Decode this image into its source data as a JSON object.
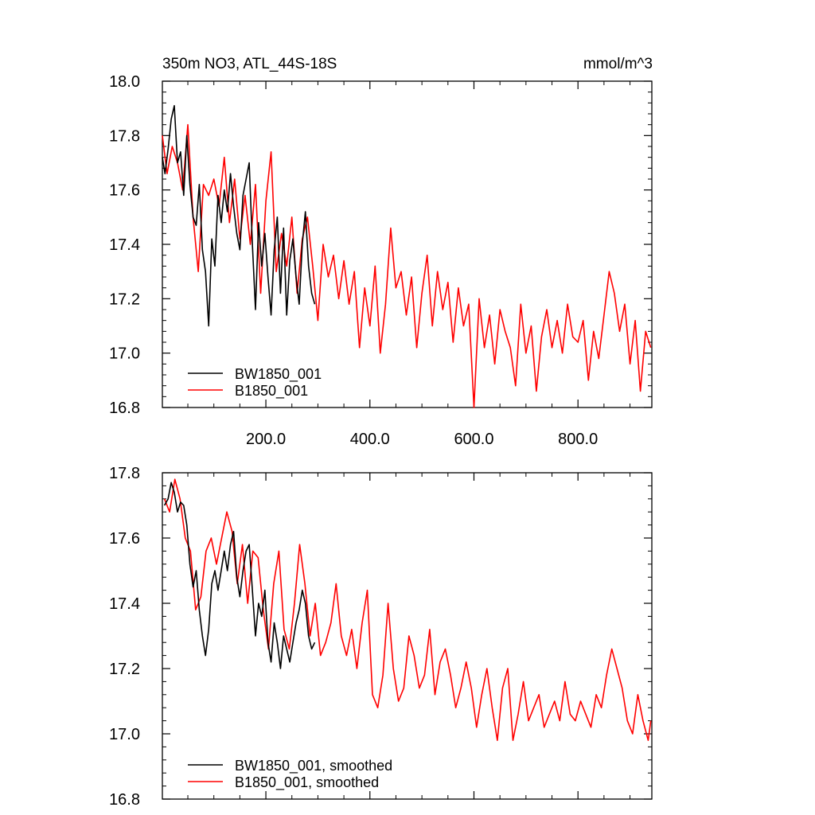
{
  "chart_data": [
    {
      "type": "line",
      "title": "350m NO3, ATL_44S-18S",
      "units_label": "mmol/m^3",
      "xlabel": "",
      "ylabel": "",
      "xlim": [
        1,
        942
      ],
      "ylim": [
        16.8,
        18.0
      ],
      "x_ticks": [
        200,
        400,
        600,
        800
      ],
      "x_tick_labels": [
        "200.0",
        "400.0",
        "600.0",
        "800.0"
      ],
      "y_ticks": [
        16.8,
        17.0,
        17.2,
        17.4,
        17.6,
        17.8,
        18.0
      ],
      "y_tick_labels": [
        "16.8",
        "17.0",
        "17.2",
        "17.4",
        "17.6",
        "17.8",
        "18.0"
      ],
      "legend_position": "bottom-left",
      "grid": false,
      "series": [
        {
          "name": "BW1850_001",
          "color": "#000000",
          "x": [
            1,
            6,
            12,
            18,
            24,
            30,
            36,
            42,
            48,
            54,
            60,
            66,
            72,
            78,
            84,
            90,
            96,
            102,
            108,
            114,
            120,
            126,
            132,
            138,
            144,
            150,
            156,
            162,
            168,
            174,
            180,
            186,
            192,
            198,
            204,
            210,
            216,
            222,
            228,
            234,
            240,
            246,
            252,
            258,
            264,
            270,
            276,
            282,
            288,
            294
          ],
          "y": [
            17.72,
            17.66,
            17.75,
            17.86,
            17.91,
            17.7,
            17.74,
            17.58,
            17.8,
            17.62,
            17.5,
            17.47,
            17.62,
            17.38,
            17.3,
            17.1,
            17.42,
            17.32,
            17.58,
            17.48,
            17.6,
            17.52,
            17.66,
            17.54,
            17.44,
            17.38,
            17.58,
            17.64,
            17.7,
            17.4,
            17.16,
            17.48,
            17.32,
            17.44,
            17.28,
            17.14,
            17.38,
            17.5,
            17.22,
            17.46,
            17.14,
            17.34,
            17.42,
            17.28,
            17.18,
            17.4,
            17.52,
            17.32,
            17.22,
            17.18
          ]
        },
        {
          "name": "B1850_001",
          "color": "#ff0000",
          "x": [
            1,
            10,
            20,
            30,
            40,
            50,
            60,
            70,
            80,
            90,
            100,
            110,
            120,
            130,
            140,
            150,
            160,
            170,
            180,
            190,
            200,
            210,
            220,
            230,
            240,
            250,
            260,
            270,
            280,
            290,
            300,
            310,
            320,
            330,
            340,
            350,
            360,
            370,
            380,
            390,
            400,
            410,
            420,
            430,
            440,
            450,
            460,
            470,
            480,
            490,
            500,
            510,
            520,
            530,
            540,
            550,
            560,
            570,
            580,
            590,
            600,
            610,
            620,
            630,
            640,
            650,
            660,
            670,
            680,
            690,
            700,
            710,
            720,
            730,
            740,
            750,
            760,
            770,
            780,
            790,
            800,
            810,
            820,
            830,
            840,
            850,
            860,
            870,
            880,
            890,
            900,
            910,
            920,
            930,
            940
          ],
          "y": [
            17.8,
            17.66,
            17.76,
            17.7,
            17.6,
            17.84,
            17.5,
            17.3,
            17.62,
            17.58,
            17.64,
            17.54,
            17.72,
            17.48,
            17.64,
            17.42,
            17.58,
            17.4,
            17.62,
            17.22,
            17.56,
            17.74,
            17.3,
            17.44,
            17.32,
            17.5,
            17.22,
            17.42,
            17.5,
            17.32,
            17.12,
            17.4,
            17.28,
            17.36,
            17.2,
            17.34,
            17.18,
            17.3,
            17.02,
            17.24,
            17.1,
            17.32,
            17.0,
            17.18,
            17.46,
            17.24,
            17.3,
            17.14,
            17.28,
            17.02,
            17.22,
            17.36,
            17.1,
            17.3,
            17.16,
            17.26,
            17.04,
            17.24,
            17.1,
            17.18,
            16.8,
            17.2,
            17.02,
            17.14,
            16.96,
            17.16,
            17.08,
            17.02,
            16.88,
            17.18,
            17.0,
            17.1,
            16.86,
            17.06,
            17.16,
            17.02,
            17.12,
            17.0,
            17.18,
            17.06,
            17.04,
            17.12,
            16.9,
            17.08,
            16.98,
            17.14,
            17.3,
            17.22,
            17.08,
            17.18,
            16.96,
            17.12,
            16.86,
            17.08,
            17.02
          ]
        }
      ]
    },
    {
      "type": "line",
      "title": "",
      "xlabel": "",
      "ylabel": "",
      "xlim": [
        1,
        942
      ],
      "ylim": [
        16.8,
        17.8
      ],
      "x_ticks": [
        200,
        400,
        600,
        800
      ],
      "x_tick_labels": [
        "",
        "",
        "",
        ""
      ],
      "y_ticks": [
        16.8,
        17.0,
        17.2,
        17.4,
        17.6,
        17.8
      ],
      "y_tick_labels": [
        "16.8",
        "17.0",
        "17.2",
        "17.4",
        "17.6",
        "17.8"
      ],
      "legend_position": "bottom-left",
      "grid": false,
      "series": [
        {
          "name": "BW1850_001, smoothed",
          "color": "#000000",
          "x": [
            5,
            12,
            18,
            24,
            30,
            36,
            42,
            48,
            54,
            60,
            66,
            72,
            78,
            84,
            90,
            96,
            102,
            108,
            114,
            120,
            126,
            132,
            138,
            144,
            150,
            156,
            162,
            168,
            174,
            180,
            186,
            192,
            198,
            204,
            210,
            216,
            222,
            228,
            234,
            240,
            246,
            252,
            258,
            264,
            270,
            276,
            282,
            288,
            294
          ],
          "y": [
            17.7,
            17.72,
            17.77,
            17.74,
            17.68,
            17.71,
            17.7,
            17.64,
            17.52,
            17.45,
            17.5,
            17.38,
            17.3,
            17.24,
            17.32,
            17.46,
            17.5,
            17.44,
            17.5,
            17.56,
            17.5,
            17.58,
            17.62,
            17.48,
            17.42,
            17.5,
            17.56,
            17.58,
            17.44,
            17.3,
            17.4,
            17.36,
            17.44,
            17.28,
            17.22,
            17.34,
            17.28,
            17.2,
            17.3,
            17.26,
            17.22,
            17.28,
            17.34,
            17.38,
            17.44,
            17.4,
            17.3,
            17.26,
            17.28
          ]
        },
        {
          "name": "B1850_001, smoothed",
          "color": "#ff0000",
          "x": [
            5,
            15,
            25,
            35,
            45,
            55,
            65,
            75,
            85,
            95,
            105,
            115,
            125,
            135,
            145,
            155,
            165,
            175,
            185,
            195,
            205,
            215,
            225,
            235,
            245,
            255,
            265,
            275,
            285,
            295,
            305,
            315,
            325,
            335,
            345,
            355,
            365,
            375,
            385,
            395,
            405,
            415,
            425,
            435,
            445,
            455,
            465,
            475,
            485,
            495,
            505,
            515,
            525,
            535,
            545,
            555,
            565,
            575,
            585,
            595,
            605,
            615,
            625,
            635,
            645,
            655,
            665,
            675,
            685,
            695,
            705,
            715,
            725,
            735,
            745,
            755,
            765,
            775,
            785,
            795,
            805,
            815,
            825,
            835,
            845,
            855,
            865,
            875,
            885,
            895,
            905,
            915,
            925,
            935,
            940
          ],
          "y": [
            17.72,
            17.68,
            17.78,
            17.72,
            17.6,
            17.56,
            17.38,
            17.42,
            17.56,
            17.6,
            17.52,
            17.6,
            17.68,
            17.62,
            17.46,
            17.58,
            17.4,
            17.56,
            17.54,
            17.38,
            17.26,
            17.46,
            17.56,
            17.32,
            17.26,
            17.4,
            17.58,
            17.46,
            17.3,
            17.4,
            17.24,
            17.28,
            17.34,
            17.46,
            17.3,
            17.24,
            17.32,
            17.2,
            17.34,
            17.44,
            17.12,
            17.08,
            17.18,
            17.4,
            17.2,
            17.1,
            17.14,
            17.3,
            17.24,
            17.14,
            17.18,
            17.32,
            17.12,
            17.22,
            17.26,
            17.18,
            17.08,
            17.14,
            17.22,
            17.14,
            17.02,
            17.12,
            17.2,
            17.08,
            16.98,
            17.14,
            17.2,
            16.98,
            17.06,
            17.16,
            17.04,
            17.08,
            17.12,
            17.02,
            17.06,
            17.1,
            17.04,
            17.16,
            17.06,
            17.04,
            17.1,
            17.06,
            17.02,
            17.12,
            17.08,
            17.18,
            17.26,
            17.2,
            17.14,
            17.04,
            17.0,
            17.12,
            17.04,
            16.98,
            17.04
          ]
        }
      ]
    }
  ]
}
